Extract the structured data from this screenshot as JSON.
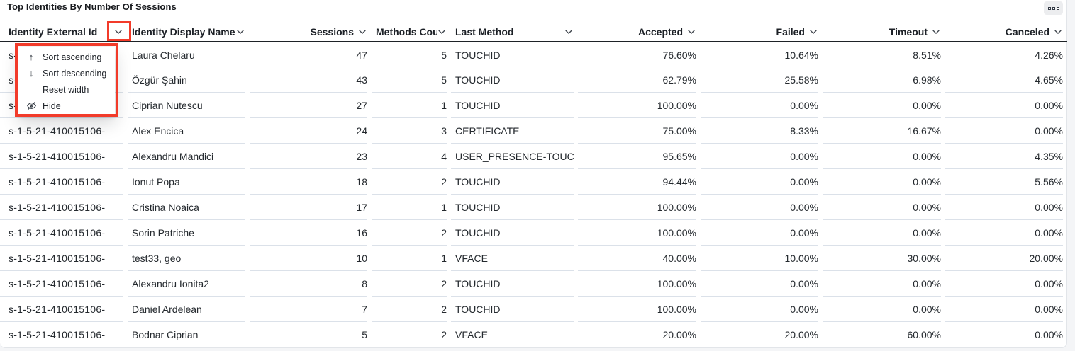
{
  "panel": {
    "title": "Top Identities By Number Of Sessions",
    "menu_icon": "panel-options-icon"
  },
  "colors": {
    "annotation_red": "#f23b2a",
    "row_divider": "#dbe1e9",
    "header_border": "#1e2227",
    "text": "#24292e"
  },
  "table": {
    "columns": [
      {
        "key": "external_id",
        "label": "Identity External Id",
        "align": "left",
        "header": "between",
        "clip": false,
        "sortable": true
      },
      {
        "key": "display_name",
        "label": "Identity Display Name",
        "align": "left",
        "header": "between",
        "clip": true,
        "sortable": true
      },
      {
        "key": "sessions",
        "label": "Sessions",
        "align": "right",
        "header": "right",
        "clip": false,
        "sortable": true
      },
      {
        "key": "methods_count",
        "label": "Methods Count",
        "align": "right",
        "header": "between",
        "clip": true,
        "sortable": true
      },
      {
        "key": "last_method",
        "label": "Last Method",
        "align": "left",
        "header": "between",
        "clip": false,
        "sortable": true
      },
      {
        "key": "accepted",
        "label": "Accepted",
        "align": "right",
        "header": "right",
        "clip": false,
        "sortable": true
      },
      {
        "key": "failed",
        "label": "Failed",
        "align": "right",
        "header": "right",
        "clip": false,
        "sortable": true
      },
      {
        "key": "timeout",
        "label": "Timeout",
        "align": "right",
        "header": "right",
        "clip": false,
        "sortable": true
      },
      {
        "key": "canceled",
        "label": "Canceled",
        "align": "right",
        "header": "right",
        "clip": false,
        "sortable": true
      }
    ],
    "rows": [
      {
        "external_id": "s-1-5-21-410015106-",
        "display_name": "Laura Chelaru",
        "sessions": "47",
        "methods_count": "5",
        "last_method": "TOUCHID",
        "accepted": "76.60%",
        "failed": "10.64%",
        "timeout": "8.51%",
        "canceled": "4.26%"
      },
      {
        "external_id": "s-1-5-21-410015106-",
        "display_name": "Özgür Şahin",
        "sessions": "43",
        "methods_count": "5",
        "last_method": "TOUCHID",
        "accepted": "62.79%",
        "failed": "25.58%",
        "timeout": "6.98%",
        "canceled": "4.65%"
      },
      {
        "external_id": "s-1-5-21-410015106-",
        "display_name": "Ciprian Nutescu",
        "sessions": "27",
        "methods_count": "1",
        "last_method": "TOUCHID",
        "accepted": "100.00%",
        "failed": "0.00%",
        "timeout": "0.00%",
        "canceled": "0.00%"
      },
      {
        "external_id": "s-1-5-21-410015106-",
        "display_name": "Alex Encica",
        "sessions": "24",
        "methods_count": "3",
        "last_method": "CERTIFICATE",
        "accepted": "75.00%",
        "failed": "8.33%",
        "timeout": "16.67%",
        "canceled": "0.00%"
      },
      {
        "external_id": "s-1-5-21-410015106-",
        "display_name": "Alexandru Mandici",
        "sessions": "23",
        "methods_count": "4",
        "last_method": "USER_PRESENCE-TOUC",
        "accepted": "95.65%",
        "failed": "0.00%",
        "timeout": "0.00%",
        "canceled": "4.35%"
      },
      {
        "external_id": "s-1-5-21-410015106-",
        "display_name": "Ionut Popa",
        "sessions": "18",
        "methods_count": "2",
        "last_method": "TOUCHID",
        "accepted": "94.44%",
        "failed": "0.00%",
        "timeout": "0.00%",
        "canceled": "5.56%"
      },
      {
        "external_id": "s-1-5-21-410015106-",
        "display_name": "Cristina Noaica",
        "sessions": "17",
        "methods_count": "1",
        "last_method": "TOUCHID",
        "accepted": "100.00%",
        "failed": "0.00%",
        "timeout": "0.00%",
        "canceled": "0.00%"
      },
      {
        "external_id": "s-1-5-21-410015106-",
        "display_name": "Sorin Patriche",
        "sessions": "16",
        "methods_count": "2",
        "last_method": "TOUCHID",
        "accepted": "100.00%",
        "failed": "0.00%",
        "timeout": "0.00%",
        "canceled": "0.00%"
      },
      {
        "external_id": "s-1-5-21-410015106-",
        "display_name": "test33, geo",
        "sessions": "10",
        "methods_count": "1",
        "last_method": "VFACE",
        "accepted": "40.00%",
        "failed": "10.00%",
        "timeout": "30.00%",
        "canceled": "20.00%"
      },
      {
        "external_id": "s-1-5-21-410015106-",
        "display_name": "Alexandru Ionita2",
        "sessions": "8",
        "methods_count": "2",
        "last_method": "TOUCHID",
        "accepted": "100.00%",
        "failed": "0.00%",
        "timeout": "0.00%",
        "canceled": "0.00%"
      },
      {
        "external_id": "s-1-5-21-410015106-",
        "display_name": "Daniel Ardelean",
        "sessions": "7",
        "methods_count": "2",
        "last_method": "TOUCHID",
        "accepted": "100.00%",
        "failed": "0.00%",
        "timeout": "0.00%",
        "canceled": "0.00%"
      },
      {
        "external_id": "s-1-5-21-410015106-",
        "display_name": "Bodnar Ciprian",
        "sessions": "5",
        "methods_count": "2",
        "last_method": "VFACE",
        "accepted": "20.00%",
        "failed": "20.00%",
        "timeout": "60.00%",
        "canceled": "0.00%"
      }
    ]
  },
  "context_menu": {
    "items": [
      {
        "icon": "arrow-up-icon",
        "glyph": "↑",
        "label": "Sort ascending"
      },
      {
        "icon": "arrow-down-icon",
        "glyph": "↓",
        "label": "Sort descending"
      },
      {
        "icon": null,
        "glyph": "",
        "label": "Reset width"
      },
      {
        "icon": "eye-off-icon",
        "glyph": "",
        "label": "Hide"
      }
    ]
  }
}
